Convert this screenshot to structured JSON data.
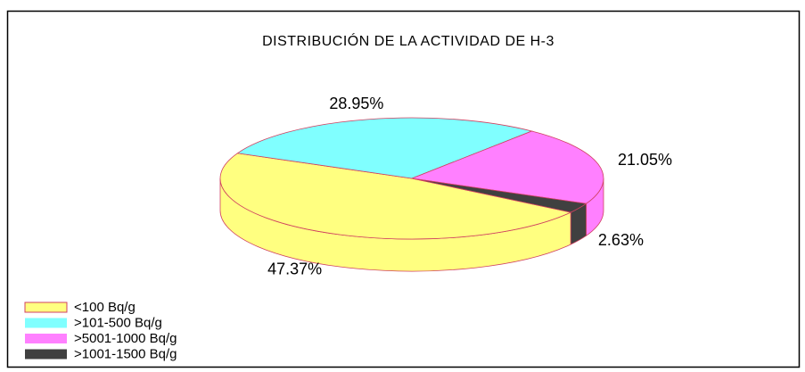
{
  "chart_data": {
    "type": "pie",
    "title": "DISTRIBUCIÓN DE LA ACTIVIDAD DE H-3",
    "categories": [
      "<100 Bq/g",
      ">101-500 Bq/g",
      ">5001-1000 Bq/g",
      ">1001-1500 Bq/g"
    ],
    "values": [
      47.37,
      28.95,
      21.05,
      2.63
    ],
    "value_labels": [
      "47.37%",
      "28.95%",
      "21.05%",
      "2.63%"
    ],
    "colors": [
      "#ffff80",
      "#80ffff",
      "#ff80ff",
      "#404040"
    ]
  }
}
